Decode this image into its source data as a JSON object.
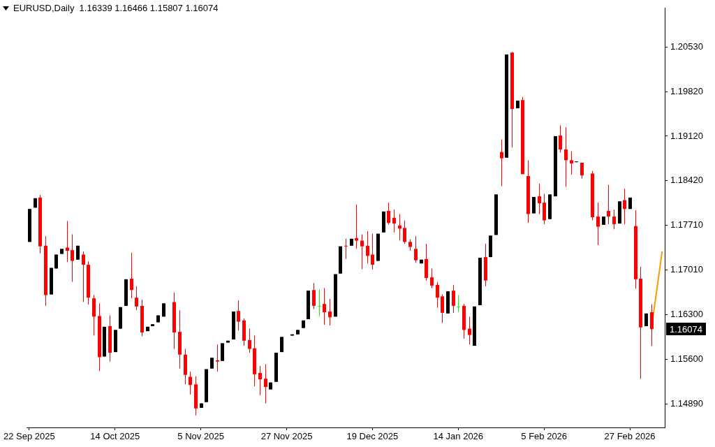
{
  "chart_data": {
    "type": "candlestick",
    "title": "EURUSD,Daily  1.16339 1.16466 1.15807 1.16074",
    "categories": [
      "22 Sep 2025",
      null,
      null,
      null,
      null,
      null,
      null,
      null,
      null,
      null,
      null,
      null,
      null,
      null,
      null,
      null,
      "14 Oct 2025",
      null,
      null,
      null,
      null,
      null,
      null,
      null,
      null,
      null,
      null,
      null,
      null,
      null,
      null,
      null,
      "5 Nov 2025",
      null,
      null,
      null,
      null,
      null,
      null,
      null,
      null,
      null,
      null,
      null,
      null,
      null,
      null,
      null,
      "27 Nov 2025",
      null,
      null,
      null,
      null,
      null,
      null,
      null,
      null,
      null,
      null,
      null,
      null,
      null,
      null,
      null,
      "19 Dec 2025",
      null,
      null,
      null,
      null,
      null,
      null,
      null,
      null,
      null,
      null,
      null,
      null,
      null,
      null,
      null,
      "14 Jan 2026",
      null,
      null,
      null,
      null,
      null,
      null,
      null,
      null,
      null,
      null,
      null,
      null,
      null,
      null,
      null,
      "5 Feb 2026",
      null,
      null,
      null,
      null,
      null,
      null,
      null,
      null,
      null,
      null,
      null,
      null,
      null,
      null,
      null,
      "27 Feb 2026",
      null,
      null,
      null,
      null,
      null,
      null
    ],
    "ohlc": [
      [
        1.1745,
        1.1797,
        1.1745,
        1.1797
      ],
      [
        1.1799,
        1.1814,
        1.1799,
        1.1814
      ],
      [
        1.1815,
        1.1819,
        1.1727,
        1.1738
      ],
      [
        1.1739,
        1.1754,
        1.1644,
        1.1661
      ],
      [
        1.1662,
        1.1704,
        1.1662,
        1.1704
      ],
      [
        1.1703,
        1.1725,
        1.1703,
        1.1725
      ],
      [
        1.1726,
        1.1734,
        1.1726,
        1.1734
      ],
      [
        1.1736,
        1.1778,
        1.1713,
        1.1731
      ],
      [
        1.1732,
        1.1757,
        1.1682,
        1.1715
      ],
      [
        1.1717,
        1.1739,
        1.1717,
        1.1739
      ],
      [
        1.1725,
        1.173,
        1.165,
        1.1709
      ],
      [
        1.1709,
        1.1714,
        1.1646,
        1.1657
      ],
      [
        1.1656,
        1.1661,
        1.1597,
        1.1627
      ],
      [
        1.1628,
        1.1648,
        1.1541,
        1.1563
      ],
      [
        1.1564,
        1.1611,
        1.1564,
        1.1611
      ],
      [
        1.1612,
        1.1629,
        1.1556,
        1.157
      ],
      [
        1.1571,
        1.1606,
        1.1571,
        1.1606
      ],
      [
        1.1608,
        1.1642,
        1.1608,
        1.1642
      ],
      [
        1.1644,
        1.1686,
        1.1644,
        1.1686
      ],
      [
        1.1687,
        1.1728,
        1.1656,
        1.1669
      ],
      [
        1.1657,
        1.1675,
        1.1637,
        1.1643
      ],
      [
        1.1644,
        1.1654,
        1.1596,
        1.1602
      ],
      [
        1.1604,
        1.1611,
        1.1604,
        1.1611
      ],
      [
        1.1612,
        1.1615,
        1.1612,
        1.1615
      ],
      [
        1.1618,
        1.1629,
        1.1618,
        1.1629
      ],
      [
        1.1627,
        1.1648,
        1.1627,
        1.1648
      ],
      null,
      [
        1.165,
        1.1665,
        1.1576,
        1.1602
      ],
      [
        1.1603,
        1.1637,
        1.1545,
        1.1567
      ],
      [
        1.1567,
        1.1576,
        1.152,
        1.1535
      ],
      [
        1.1532,
        1.154,
        1.1504,
        1.1519
      ],
      [
        1.152,
        1.1533,
        1.1471,
        1.1482
      ],
      [
        1.1483,
        1.149,
        1.1483,
        1.149
      ],
      [
        1.1492,
        1.1544,
        1.1492,
        1.1544
      ],
      [
        1.1545,
        1.1562,
        1.1545,
        1.1562
      ],
      [
        1.1558,
        1.1583,
        1.154,
        1.1556
      ],
      [
        1.1557,
        1.1585,
        1.1557,
        1.1585
      ],
      [
        1.1586,
        1.1589,
        1.1586,
        1.1589
      ],
      [
        1.1591,
        1.1635,
        1.1591,
        1.1635
      ],
      [
        1.1636,
        1.1653,
        1.1605,
        1.1619
      ],
      [
        1.1621,
        1.1624,
        1.1581,
        1.1589
      ],
      [
        1.159,
        1.1608,
        1.157,
        1.1576
      ],
      [
        1.1577,
        1.1597,
        1.1517,
        1.1536
      ],
      [
        1.1538,
        1.1549,
        1.1503,
        1.1528
      ],
      [
        1.1529,
        1.1552,
        1.149,
        1.1516
      ],
      [
        1.1512,
        1.1523,
        1.1512,
        1.1523
      ],
      [
        1.1524,
        1.157,
        1.1524,
        1.157
      ],
      [
        1.1571,
        1.1595,
        1.1571,
        1.1595
      ],
      null,
      [
        1.1597,
        1.1599,
        1.1597,
        1.1599
      ],
      [
        1.1599,
        1.1606,
        1.1599,
        1.1606
      ],
      [
        1.1609,
        1.1621,
        1.1609,
        1.1621
      ],
      [
        1.1623,
        1.1668,
        1.1623,
        1.1668
      ],
      [
        1.1669,
        1.168,
        1.1639,
        1.1644
      ],
      [
        1.1644,
        1.167,
        1.1627,
        1.1644
      ],
      [
        1.1647,
        1.1672,
        1.1614,
        1.1634
      ],
      [
        1.1635,
        1.1655,
        1.1613,
        1.1626
      ],
      [
        1.1627,
        1.1694,
        1.1627,
        1.1694
      ],
      [
        1.1695,
        1.1738,
        1.1695,
        1.1738
      ],
      [
        1.1739,
        1.175,
        1.1718,
        1.1738
      ],
      [
        1.1739,
        1.175,
        1.1739,
        1.175
      ],
      [
        1.1751,
        1.1804,
        1.1734,
        1.1747
      ],
      [
        1.1747,
        1.1757,
        1.1702,
        1.1738
      ],
      [
        1.1739,
        1.1762,
        1.1711,
        1.1723
      ],
      [
        1.1725,
        1.1758,
        1.1701,
        1.1709
      ],
      [
        1.1715,
        1.1758,
        1.1715,
        1.1758
      ],
      [
        1.176,
        1.1793,
        1.176,
        1.1793
      ],
      [
        1.1794,
        1.1807,
        1.1772,
        1.1775
      ],
      [
        1.1783,
        1.1796,
        1.176,
        1.1774
      ],
      [
        1.1771,
        1.1789,
        1.1747,
        1.1766
      ],
      [
        1.1767,
        1.1779,
        1.1742,
        1.1745
      ],
      [
        1.1745,
        1.1749,
        1.1731,
        1.1737
      ],
      [
        1.1734,
        1.1754,
        1.1712,
        1.1716
      ],
      [
        1.1711,
        1.1717,
        1.1711,
        1.1717
      ],
      [
        1.1718,
        1.1742,
        1.1684,
        1.1688
      ],
      [
        1.1689,
        1.1703,
        1.1672,
        1.1676
      ],
      [
        1.1677,
        1.1682,
        1.1641,
        1.1657
      ],
      [
        1.1659,
        1.1662,
        1.1617,
        1.1633
      ],
      [
        1.1632,
        1.1667,
        1.1632,
        1.1667
      ],
      [
        1.1668,
        1.1677,
        1.1633,
        1.1644
      ],
      [
        1.1643,
        1.1661,
        1.1634,
        1.1643
      ],
      [
        1.1644,
        1.1647,
        1.1592,
        1.1606
      ],
      [
        1.1608,
        1.1627,
        1.1583,
        1.1598
      ],
      [
        1.1581,
        1.1643,
        1.1581,
        1.1643
      ],
      [
        1.1645,
        1.172,
        1.1645,
        1.172
      ],
      [
        1.1721,
        1.1742,
        1.1675,
        1.1684
      ],
      [
        1.1721,
        1.1755,
        1.1721,
        1.1755
      ],
      [
        1.1756,
        1.182,
        1.1756,
        1.182
      ],
      [
        1.1887,
        1.1907,
        1.1833,
        1.1877
      ],
      [
        1.1878,
        1.2041,
        1.1878,
        1.2041
      ],
      [
        1.2044,
        1.2045,
        1.1894,
        1.1955
      ],
      [
        1.1956,
        1.1968,
        1.1956,
        1.1968
      ],
      [
        1.1969,
        1.1974,
        1.1852,
        1.1852
      ],
      [
        1.1849,
        1.1874,
        1.1775,
        1.1789
      ],
      [
        1.179,
        1.1816,
        1.179,
        1.1816
      ],
      [
        1.1817,
        1.1837,
        1.1789,
        1.1806
      ],
      [
        1.1807,
        1.1821,
        1.1773,
        1.1779
      ],
      [
        1.1781,
        1.182,
        1.1781,
        1.182
      ],
      [
        1.1817,
        1.1912,
        1.1817,
        1.1912
      ],
      [
        1.1913,
        1.1929,
        1.1886,
        1.1891
      ],
      [
        1.1891,
        1.1926,
        1.1832,
        1.1874
      ],
      [
        1.1874,
        1.1888,
        1.1851,
        1.1869
      ],
      [
        1.1871,
        1.1872,
        1.1871,
        1.1872
      ],
      [
        1.187,
        1.187,
        1.1845,
        1.185
      ],
      null,
      [
        1.1853,
        1.1857,
        1.1779,
        1.1784
      ],
      [
        1.1785,
        1.1807,
        1.174,
        1.1769
      ],
      [
        1.1772,
        1.1785,
        1.1772,
        1.1785
      ],
      [
        1.1794,
        1.1835,
        1.1773,
        1.1785
      ],
      [
        1.1785,
        1.1796,
        1.1765,
        1.1773
      ],
      [
        1.1774,
        1.1809,
        1.1774,
        1.1809
      ],
      [
        1.1811,
        1.1829,
        1.1773,
        1.1797
      ],
      [
        1.1797,
        1.1815,
        1.1797,
        1.1815
      ],
      [
        1.177,
        1.1795,
        1.1671,
        1.1686
      ],
      [
        1.1687,
        1.1706,
        1.1529,
        1.161
      ],
      [
        1.1612,
        1.1632,
        1.1612,
        1.1632
      ],
      [
        1.16339,
        1.16466,
        1.15807,
        1.16074
      ],
      null,
      null
    ],
    "colors": [
      "#000000",
      "#000000",
      "#ff0000",
      "#ff0000",
      "#000000",
      "#000000",
      "#000000",
      "#ff0000",
      "#ff0000",
      "#000000",
      "#ff0000",
      "#ff0000",
      "#ff0000",
      "#ff0000",
      "#000000",
      "#ff0000",
      "#000000",
      "#000000",
      "#000000",
      "#ff0000",
      "#ff0000",
      "#ff0000",
      "#000000",
      "#000000",
      "#000000",
      "#000000",
      null,
      "#ff0000",
      "#ff0000",
      "#ff0000",
      "#ff0000",
      "#ff0000",
      "#000000",
      "#000000",
      "#000000",
      "#ff0000",
      "#000000",
      "#000000",
      "#000000",
      "#ff0000",
      "#ff0000",
      "#ff0000",
      "#ff0000",
      "#ff0000",
      "#ff0000",
      "#000000",
      "#000000",
      "#000000",
      null,
      "#000000",
      "#000000",
      "#000000",
      "#000000",
      "#ff0000",
      "#00ff00",
      "#ff0000",
      "#ff0000",
      "#000000",
      "#000000",
      "#ff0000",
      "#000000",
      "#ff0000",
      "#ff0000",
      "#ff0000",
      "#ff0000",
      "#000000",
      "#000000",
      "#ff0000",
      "#ff0000",
      "#ff0000",
      "#ff0000",
      "#ff0000",
      "#ff0000",
      "#000000",
      "#ff0000",
      "#ff0000",
      "#ff0000",
      "#ff0000",
      "#000000",
      "#ff0000",
      "#00ff00",
      "#ff0000",
      "#ff0000",
      "#000000",
      "#000000",
      "#ff0000",
      "#000000",
      "#000000",
      "#ff0000",
      "#000000",
      "#ff0000",
      "#000000",
      "#ff0000",
      "#ff0000",
      "#000000",
      "#ff0000",
      "#ff0000",
      "#000000",
      "#000000",
      "#ff0000",
      "#ff0000",
      "#ff0000",
      "#000000",
      "#ff0000",
      null,
      "#ff0000",
      "#ff0000",
      "#000000",
      "#ff0000",
      "#ff0000",
      "#000000",
      "#ff0000",
      "#000000",
      "#ff0000",
      "#ff0000",
      "#000000",
      "#ff0000",
      null,
      null
    ],
    "series": [
      {
        "type": "line",
        "color": "#ff9900",
        "values": [
          null,
          null,
          null,
          null,
          null,
          null,
          null,
          null,
          null,
          null,
          null,
          null,
          null,
          null,
          null,
          null,
          null,
          null,
          null,
          null,
          null,
          null,
          null,
          null,
          null,
          null,
          null,
          null,
          null,
          null,
          null,
          null,
          null,
          null,
          null,
          null,
          null,
          null,
          null,
          null,
          null,
          null,
          null,
          null,
          null,
          null,
          null,
          null,
          null,
          null,
          null,
          null,
          null,
          null,
          null,
          null,
          null,
          null,
          null,
          null,
          null,
          null,
          null,
          null,
          null,
          null,
          null,
          null,
          null,
          null,
          null,
          null,
          null,
          null,
          null,
          null,
          null,
          null,
          null,
          null,
          null,
          null,
          null,
          null,
          null,
          null,
          null,
          null,
          null,
          null,
          null,
          null,
          null,
          null,
          null,
          null,
          null,
          null,
          null,
          null,
          null,
          null,
          null,
          null,
          null,
          null,
          null,
          null,
          null,
          null,
          null,
          null,
          null,
          null,
          null,
          null,
          1.1607,
          1.1668,
          1.1729
        ]
      }
    ],
    "ylim": [
      1.1452,
      1.2114
    ],
    "yticks": [
      {
        "value": 1.1489,
        "label": "1.14890"
      },
      {
        "value": 1.156,
        "label": "1.15600"
      },
      {
        "value": 1.163,
        "label": "1.16300"
      },
      {
        "value": 1.1701,
        "label": "1.17010"
      },
      {
        "value": 1.1771,
        "label": "1.17710"
      },
      {
        "value": 1.1842,
        "label": "1.18420"
      },
      {
        "value": 1.1912,
        "label": "1.19120"
      },
      {
        "value": 1.1982,
        "label": "1.19820"
      },
      {
        "value": 1.2053,
        "label": "1.20530"
      }
    ],
    "annotations": [
      "1.16074"
    ]
  }
}
